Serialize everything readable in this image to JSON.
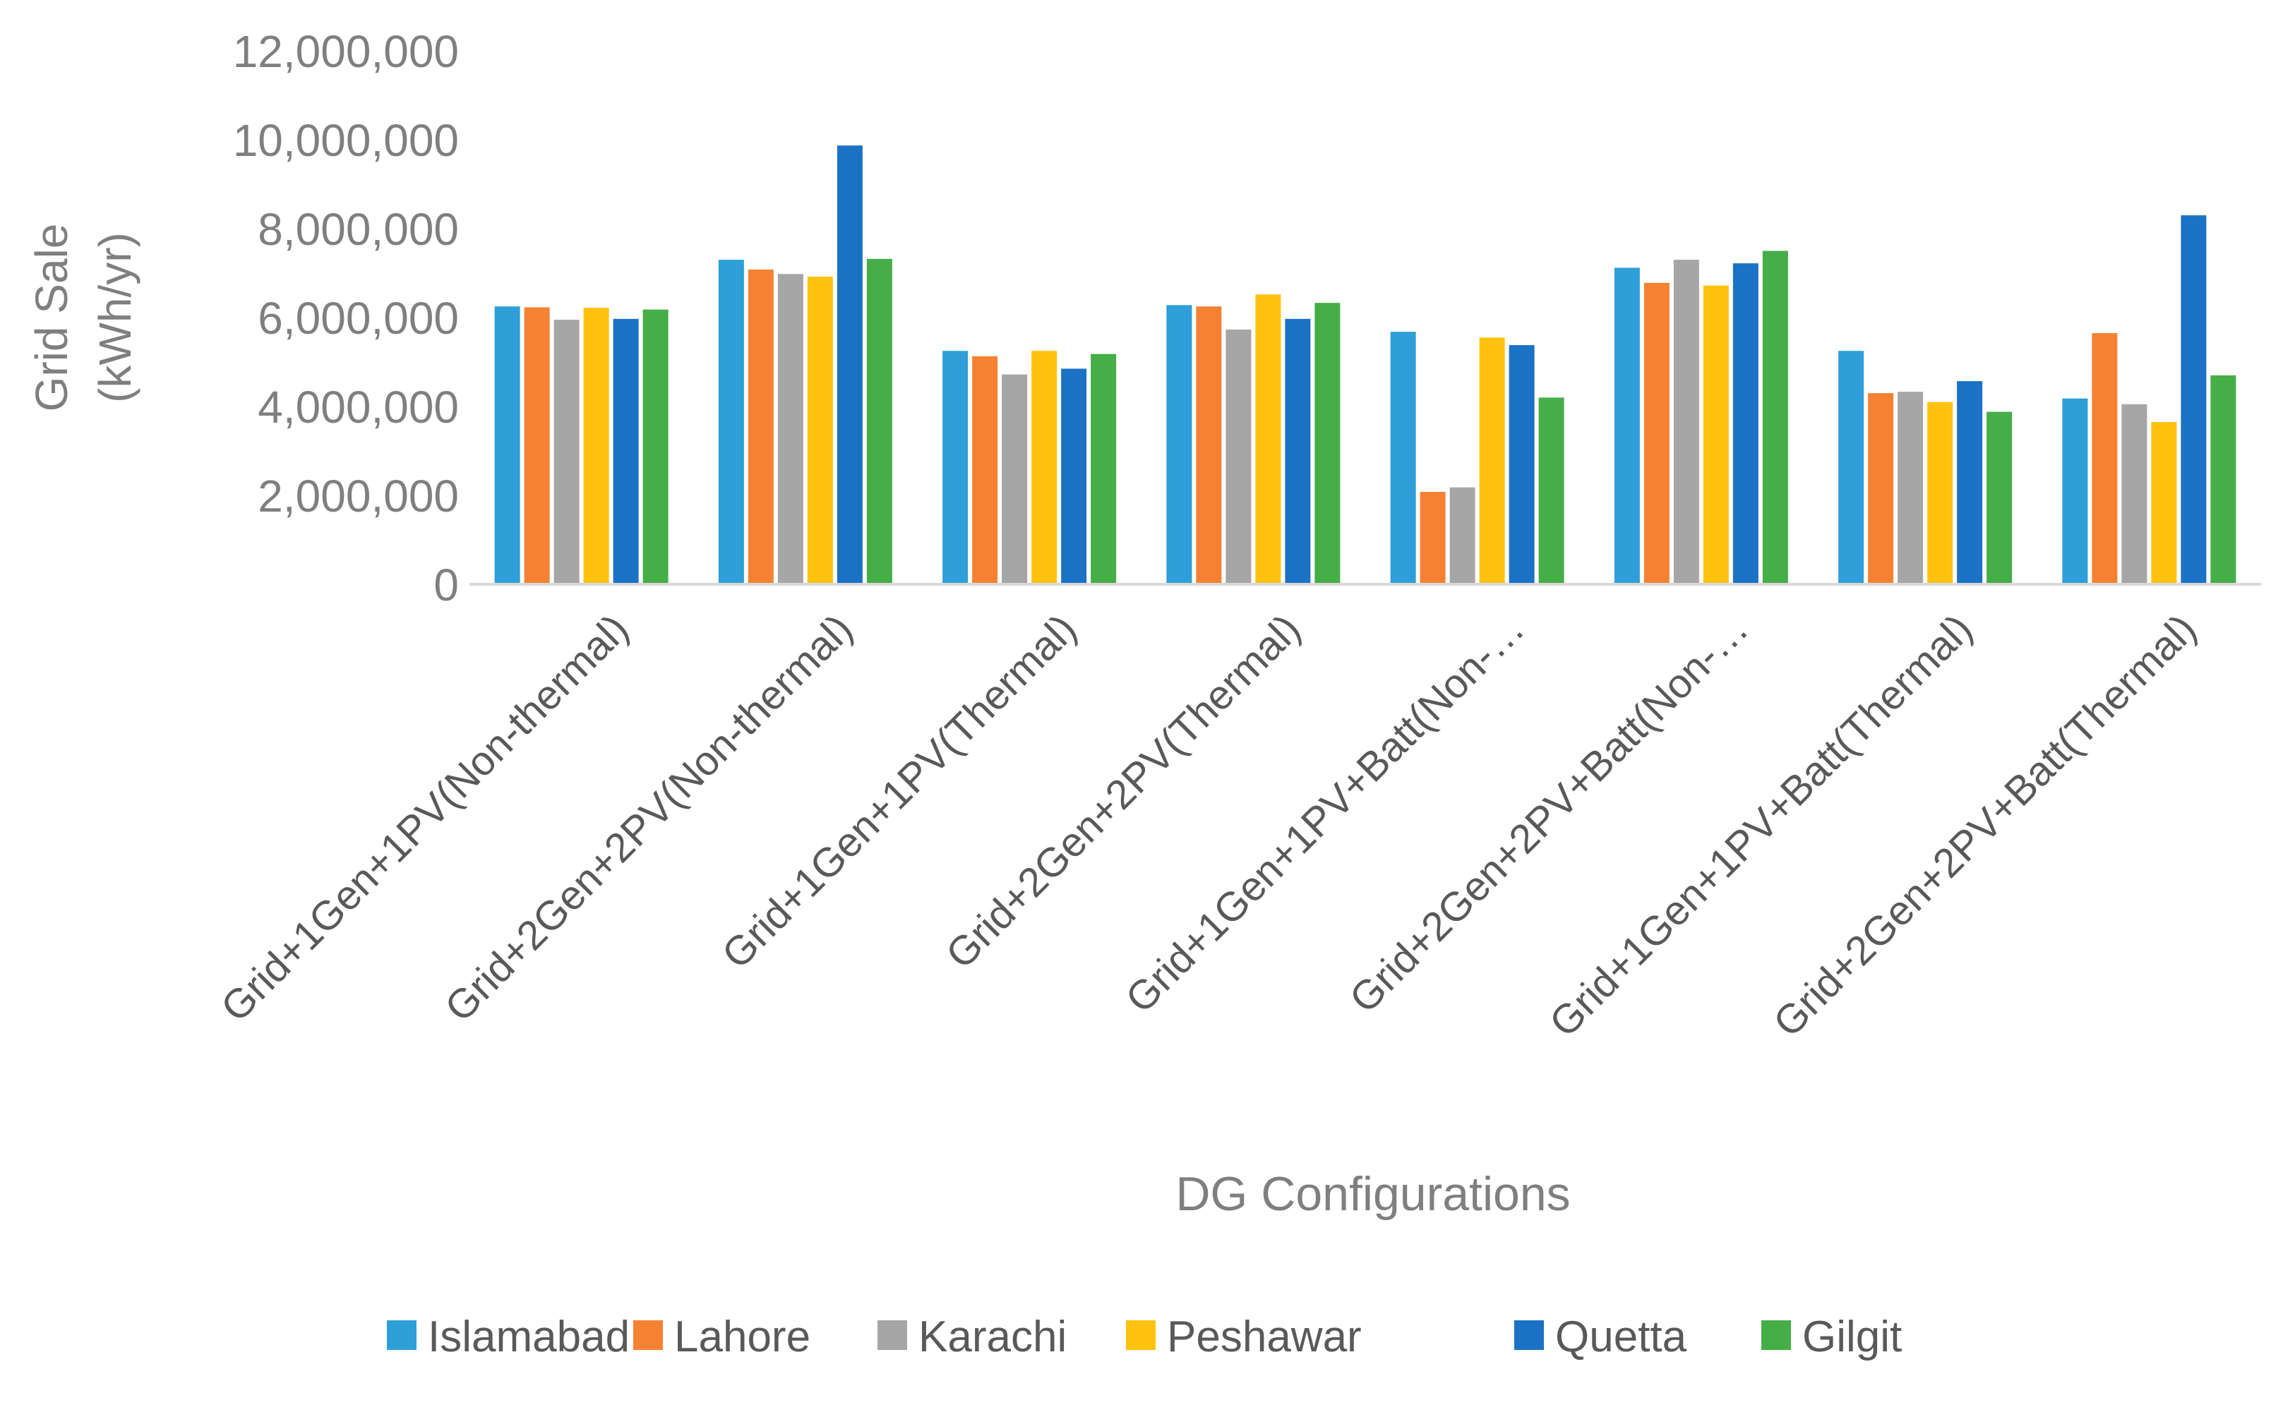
{
  "chart_data": {
    "type": "bar",
    "title": "",
    "xlabel": "DG Configurations",
    "ylabel_lines": [
      "Grid Sale",
      "(kWh/yr)"
    ],
    "ylim": [
      0,
      12000000
    ],
    "yticks": [
      0,
      2000000,
      4000000,
      6000000,
      8000000,
      10000000,
      12000000
    ],
    "ytick_labels": [
      "0",
      "2,000,000",
      "4,000,000",
      "6,000,000",
      "8,000,000",
      "10,000,000",
      "12,000,000"
    ],
    "grid": false,
    "legend_position": "bottom",
    "categories": [
      "Grid+1Gen+1PV(Non-thermal)",
      "Grid+2Gen+2PV(Non-thermal)",
      "Grid+1Gen+1PV(Thermal)",
      "Grid+2Gen+2PV(Thermal)",
      "Grid+1Gen+1PV+Batt(Non-…",
      "Grid+2Gen+2PV+Batt(Non-…",
      "Grid+1Gen+1PV+Batt(Thermal)",
      "Grid+2Gen+2PV+Batt(Thermal)"
    ],
    "series": [
      {
        "name": "Islamabad",
        "color": "#2E9FD8",
        "values": [
          6250000,
          7300000,
          5250000,
          6280000,
          5680000,
          7120000,
          5250000,
          4180000
        ]
      },
      {
        "name": "Lahore",
        "color": "#F58233",
        "values": [
          6230000,
          7080000,
          5130000,
          6250000,
          2080000,
          6780000,
          4300000,
          5650000
        ]
      },
      {
        "name": "Karachi",
        "color": "#A6A6A6",
        "values": [
          5950000,
          6980000,
          4720000,
          5730000,
          2180000,
          7300000,
          4330000,
          4050000
        ]
      },
      {
        "name": "Peshawar",
        "color": "#FFC20E",
        "values": [
          6220000,
          6920000,
          5250000,
          6520000,
          5550000,
          6720000,
          4100000,
          3650000
        ]
      },
      {
        "name": "Quetta",
        "color": "#1B72C4",
        "values": [
          5970000,
          9870000,
          4850000,
          5970000,
          5380000,
          7220000,
          4570000,
          8300000
        ]
      },
      {
        "name": "Gilgit",
        "color": "#45AE47",
        "values": [
          6180000,
          7320000,
          5180000,
          6330000,
          4200000,
          7500000,
          3880000,
          4700000
        ]
      }
    ],
    "colors": {
      "axis_text": "#7F7F7F",
      "axis_line": "#D9D9D9",
      "category_text": "#595959"
    }
  }
}
